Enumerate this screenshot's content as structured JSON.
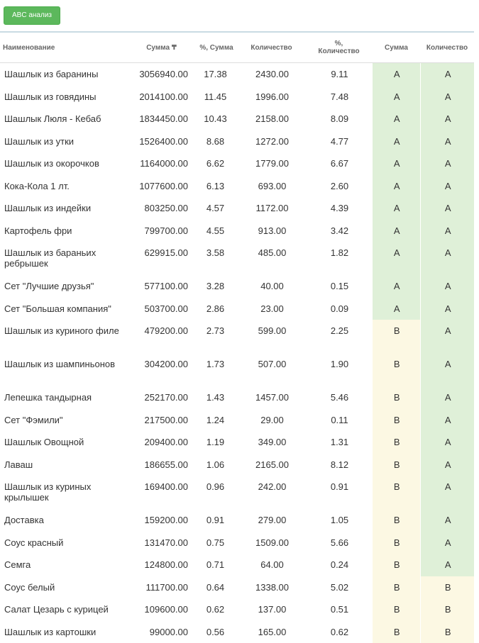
{
  "button": "ABC анализ",
  "table": {
    "headers": [
      "Наименование",
      "Сумма ₸",
      "%, Сумма",
      "Количество",
      "%, Количество",
      "Сумма",
      "Количество"
    ],
    "rows": [
      [
        "Шашлык из баранины",
        "3056940.00",
        "17.38",
        "2430.00",
        "9.11",
        "A",
        "A"
      ],
      [
        "Шашлык из говядины",
        "2014100.00",
        "11.45",
        "1996.00",
        "7.48",
        "A",
        "A"
      ],
      [
        "Шашлык Люля - Кебаб",
        "1834450.00",
        "10.43",
        "2158.00",
        "8.09",
        "A",
        "A"
      ],
      [
        "Шашлык из утки",
        "1526400.00",
        "8.68",
        "1272.00",
        "4.77",
        "A",
        "A"
      ],
      [
        "Шашлык из окорочков",
        "1164000.00",
        "6.62",
        "1779.00",
        "6.67",
        "A",
        "A"
      ],
      [
        "Кока-Кола 1 лт.",
        "1077600.00",
        "6.13",
        "693.00",
        "2.60",
        "A",
        "A"
      ],
      [
        "Шашлык из индейки",
        "803250.00",
        "4.57",
        "1172.00",
        "4.39",
        "A",
        "A"
      ],
      [
        "Картофель фри",
        "799700.00",
        "4.55",
        "913.00",
        "3.42",
        "A",
        "A"
      ],
      [
        "Шашлык из бараньих ребрышек",
        "629915.00",
        "3.58",
        "485.00",
        "1.82",
        "A",
        "A"
      ],
      [
        "Сет \"Лучшие друзья\"",
        "577100.00",
        "3.28",
        "40.00",
        "0.15",
        "A",
        "A"
      ],
      [
        "Сет \"Большая компания\"",
        "503700.00",
        "2.86",
        "23.00",
        "0.09",
        "A",
        "A"
      ],
      [
        "Шашлык из куриного филе",
        "479200.00",
        "2.73",
        "599.00",
        "2.25",
        "B",
        "A"
      ],
      [
        "Шашлык из шампиньонов",
        "304200.00",
        "1.73",
        "507.00",
        "1.90",
        "B",
        "A"
      ],
      [
        "Лепешка тандырная",
        "252170.00",
        "1.43",
        "1457.00",
        "5.46",
        "B",
        "A"
      ],
      [
        "Сет \"Фэмили\"",
        "217500.00",
        "1.24",
        "29.00",
        "0.11",
        "B",
        "A"
      ],
      [
        "Шашлык Овощной",
        "209400.00",
        "1.19",
        "349.00",
        "1.31",
        "B",
        "A"
      ],
      [
        "Лаваш",
        "186655.00",
        "1.06",
        "2165.00",
        "8.12",
        "B",
        "A"
      ],
      [
        "Шашлык из куриных крылышек",
        "169400.00",
        "0.96",
        "242.00",
        "0.91",
        "B",
        "A"
      ],
      [
        "Доставка",
        "159200.00",
        "0.91",
        "279.00",
        "1.05",
        "B",
        "A"
      ],
      [
        "Соус красный",
        "131470.00",
        "0.75",
        "1509.00",
        "5.66",
        "B",
        "A"
      ],
      [
        "Семга",
        "124800.00",
        "0.71",
        "64.00",
        "0.24",
        "B",
        "A"
      ],
      [
        "Соус белый",
        "111700.00",
        "0.64",
        "1338.00",
        "5.02",
        "B",
        "B"
      ],
      [
        "Салат Цезарь с курицей",
        "109600.00",
        "0.62",
        "137.00",
        "0.51",
        "B",
        "B"
      ],
      [
        "Шашлык из картошки",
        "99000.00",
        "0.56",
        "165.00",
        "0.62",
        "B",
        "B"
      ]
    ]
  }
}
